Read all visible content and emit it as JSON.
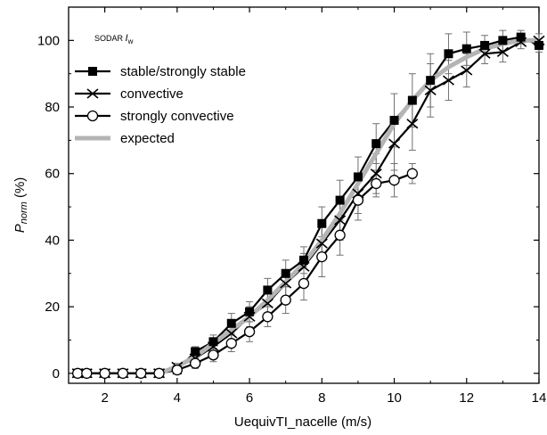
{
  "chart_data": {
    "type": "line",
    "xlabel": "UequivTI_nacelle (m/s)",
    "ylabel_main": "P",
    "ylabel_sub": "norm",
    "ylabel_unit": " (%)",
    "annotation_main": "SODAR ",
    "annotation_var": "I",
    "annotation_sub": "w",
    "xlim": [
      1,
      14
    ],
    "ylim": [
      -3,
      110
    ],
    "xticks": [
      2,
      4,
      6,
      8,
      10,
      12,
      14
    ],
    "yticks": [
      0,
      20,
      40,
      60,
      80,
      100
    ],
    "x_tick_labels": [
      "2",
      "4",
      "6",
      "8",
      "10",
      "12",
      "14"
    ],
    "y_tick_labels": [
      "0",
      "20",
      "40",
      "60",
      "80",
      "100"
    ],
    "legend_position": "upper-left",
    "series": [
      {
        "name": "stable/strongly stable",
        "color": "#000000",
        "marker": "filled-square",
        "x": [
          1.25,
          1.5,
          2.0,
          2.5,
          3.0,
          3.5,
          4.0,
          4.5,
          5.0,
          5.5,
          6.0,
          6.5,
          7.0,
          7.5,
          8.0,
          8.5,
          9.0,
          9.5,
          10.0,
          10.5,
          11.0,
          11.5,
          12.0,
          12.5,
          13.0,
          13.5,
          14.0
        ],
        "y": [
          0,
          0,
          0,
          0,
          0,
          0,
          1,
          6.5,
          9.5,
          15,
          18.5,
          25,
          30,
          34,
          45,
          52,
          59,
          69,
          76,
          82,
          88,
          96,
          97.5,
          98.5,
          100,
          101,
          98.5
        ],
        "err": [
          0.5,
          0.5,
          0.5,
          0.5,
          0.5,
          0.5,
          1,
          1.5,
          2,
          3,
          3,
          3.5,
          4,
          4,
          5,
          6,
          6,
          6,
          8,
          8,
          8,
          6,
          5,
          3,
          3,
          2,
          2
        ]
      },
      {
        "name": "convective",
        "color": "#000000",
        "marker": "x",
        "x": [
          1.25,
          1.5,
          2.0,
          2.5,
          3.0,
          3.5,
          4.0,
          4.5,
          5.0,
          5.5,
          6.0,
          6.5,
          7.0,
          7.5,
          8.0,
          8.5,
          9.0,
          9.5,
          10.0,
          10.5,
          11.0,
          11.5,
          12.0,
          12.5,
          13.0,
          13.5,
          14.0
        ],
        "y": [
          0,
          0,
          0,
          0,
          0,
          0,
          2,
          4.5,
          8,
          12,
          17,
          21,
          27,
          32,
          39,
          46,
          54,
          60,
          69,
          75,
          85,
          88,
          91,
          96,
          96.5,
          99.5,
          100
        ],
        "err": [
          0.5,
          0.5,
          0.5,
          0.5,
          0.5,
          0.5,
          1,
          1.5,
          2,
          3,
          3,
          3.5,
          4,
          4,
          5,
          6,
          6,
          6,
          8,
          8,
          8,
          6,
          5,
          3,
          3,
          2,
          2
        ]
      },
      {
        "name": "strongly convective",
        "color": "#000000",
        "marker": "open-circle",
        "x": [
          1.25,
          1.5,
          2.0,
          2.5,
          3.0,
          3.5,
          4.0,
          4.5,
          5.0,
          5.5,
          6.0,
          6.5,
          7.0,
          7.5,
          8.0,
          8.5,
          9.0,
          9.5,
          10.0,
          10.5
        ],
        "y": [
          0,
          0,
          0,
          0,
          0,
          0,
          1,
          3,
          5.5,
          9,
          12.5,
          17,
          22,
          27,
          35,
          41.5,
          52,
          57,
          58,
          60
        ],
        "err": [
          0.5,
          0.5,
          0.5,
          0.5,
          0.5,
          0.5,
          1,
          1.5,
          2,
          2.5,
          3,
          3,
          4,
          5,
          6,
          6,
          6,
          4,
          5,
          3
        ]
      },
      {
        "name": "expected",
        "color": "#b4b4b4",
        "marker": "none",
        "x": [
          3.5,
          4.0,
          4.5,
          5.0,
          5.5,
          6.0,
          6.5,
          7.0,
          7.5,
          8.0,
          8.5,
          9.0,
          9.5,
          10.0,
          10.5,
          11.0,
          11.5,
          12.0,
          12.5,
          13.0,
          13.5,
          14.0
        ],
        "y": [
          0,
          2,
          5,
          9,
          13,
          17,
          22,
          27.5,
          33,
          40,
          48,
          57,
          66,
          75,
          82,
          88,
          92,
          95,
          97.5,
          99,
          100,
          100
        ],
        "err": []
      }
    ]
  }
}
